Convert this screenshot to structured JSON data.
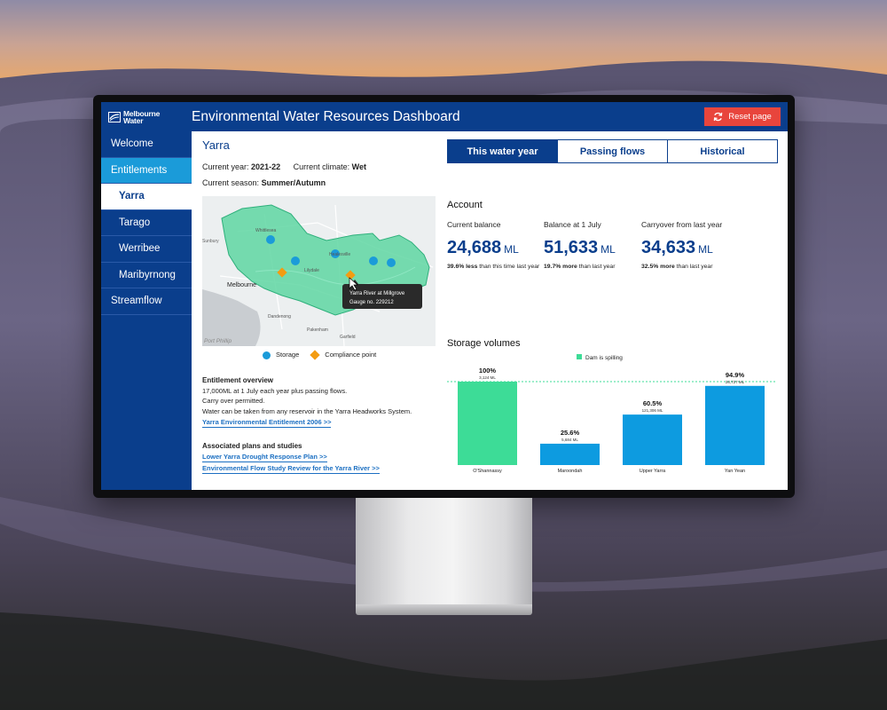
{
  "brand": {
    "logo_line1": "Melbourne",
    "logo_line2": "Water"
  },
  "header": {
    "title": "Environmental Water Resources Dashboard",
    "reset_label": "Reset page"
  },
  "sidebar": {
    "items": [
      {
        "label": "Welcome",
        "level": 0,
        "state": "normal"
      },
      {
        "label": "Entitlements",
        "level": 0,
        "state": "active-parent"
      },
      {
        "label": "Yarra",
        "level": 1,
        "state": "selected"
      },
      {
        "label": "Tarago",
        "level": 1,
        "state": "normal"
      },
      {
        "label": "Werribee",
        "level": 1,
        "state": "normal"
      },
      {
        "label": "Maribyrnong",
        "level": 1,
        "state": "normal"
      },
      {
        "label": "Streamflow",
        "level": 0,
        "state": "normal"
      }
    ]
  },
  "region": {
    "title": "Yarra",
    "current_year_label": "Current year:",
    "current_year": "2021-22",
    "current_climate_label": "Current climate:",
    "current_climate": "Wet",
    "current_season_label": "Current season:",
    "current_season": "Summer/Autumn"
  },
  "map": {
    "labels": {
      "place1": "Melbourne",
      "place2": "Dandenong",
      "place3": "Pakenham",
      "place4": "Port Phillip",
      "place5": "Healesville",
      "place6": "Lilydale",
      "place7": "Sunbury",
      "place8": "Whittlesea",
      "place9": "Garfield"
    },
    "tooltip_line1": "Yarra River at Millgrove",
    "tooltip_line2": "Gauge no. 229212",
    "legend_storage": "Storage",
    "legend_compliance": "Compliance point",
    "colors": {
      "catchment": "#5fd6a2",
      "storage": "#1b9bd9",
      "compliance": "#f39c12"
    }
  },
  "entitlement": {
    "heading": "Entitlement overview",
    "line1": "17,000ML at 1 July each year plus passing flows.",
    "line2": "Carry over permitted.",
    "line3": "Water can be taken from any reservoir in the Yarra Headworks System.",
    "link": "Yarra Environmental Entitlement 2006 >>"
  },
  "plans": {
    "heading": "Associated plans and studies",
    "link1": "Lower Yarra Drought Response Plan >>",
    "link2": "Environmental Flow Study Review for the Yarra River >>"
  },
  "tabs": [
    {
      "label": "This water year",
      "active": true
    },
    {
      "label": "Passing flows",
      "active": false
    },
    {
      "label": "Historical",
      "active": false
    }
  ],
  "account": {
    "title": "Account",
    "metrics": [
      {
        "label": "Current balance",
        "value": "24,688",
        "unit": "ML",
        "change": "39.6% less",
        "note": " than this time last year"
      },
      {
        "label": "Balance at 1 July",
        "value": "51,633",
        "unit": "ML",
        "change": "19.7% more",
        "note": " than last year"
      },
      {
        "label": "Carryover from last year",
        "value": "34,633",
        "unit": "ML",
        "change": "32.5% more",
        "note": " than last year"
      }
    ]
  },
  "storage": {
    "title": "Storage volumes",
    "legend_label": "Dam is spilling"
  },
  "chart_data": {
    "type": "bar",
    "title": "Storage volumes",
    "categories": [
      "O'Shannassy",
      "Maroondah",
      "Upper Yarra",
      "Yan Yean"
    ],
    "values": [
      100,
      25.6,
      60.5,
      94.9
    ],
    "percent_labels": [
      "100%",
      "25.6%",
      "60.5%",
      "94.9%"
    ],
    "volume_labels": [
      "3,124 ML",
      "5,684 ML",
      "121,306 ML",
      "28,727 ML"
    ],
    "spilling": [
      true,
      false,
      false,
      false
    ],
    "colors": {
      "spilling": "#3ddc97",
      "normal": "#0d9be0",
      "reference_line": "#3ddc97"
    },
    "ylim": [
      0,
      100
    ],
    "reference_line": 100,
    "legend": "top-center"
  }
}
